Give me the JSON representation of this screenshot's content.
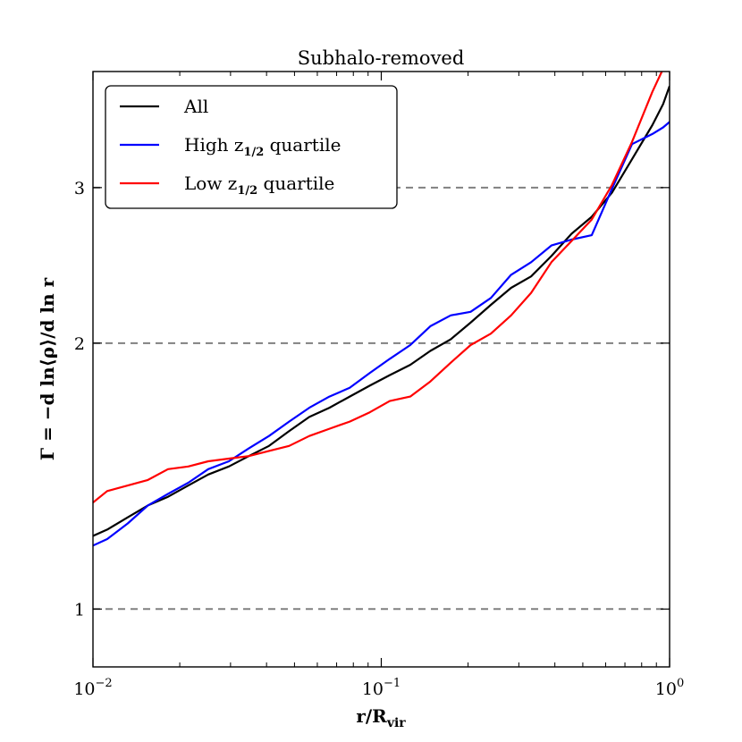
{
  "chart_data": {
    "type": "line",
    "title": "Subhalo-removed",
    "xlabel": {
      "main": "r/R",
      "sub": "vir"
    },
    "ylabel": "Γ = −d ln⟨ρ⟩/d ln r",
    "x_scale": "log",
    "y_scale": "log",
    "xlim": [
      0.01,
      1.0
    ],
    "ylim": [
      0.86,
      4.06
    ],
    "x_ticks": [
      {
        "value": 0.01,
        "base": "10",
        "exp": "−2"
      },
      {
        "value": 0.1,
        "base": "10",
        "exp": "−1"
      },
      {
        "value": 1.0,
        "base": "10",
        "exp": "0"
      }
    ],
    "y_ticks": [
      {
        "value": 1,
        "label": "1"
      },
      {
        "value": 2,
        "label": "2"
      },
      {
        "value": 3,
        "label": "3"
      }
    ],
    "reference_lines": [
      1,
      2,
      3
    ],
    "legend": {
      "position": "top-left",
      "entries": [
        {
          "pre": "All",
          "sub": "",
          "post": "",
          "color": "#000000"
        },
        {
          "pre": "High z",
          "sub": "1/2",
          "post": " quartile",
          "color": "#0000ff"
        },
        {
          "pre": "Low z",
          "sub": "1/2",
          "post": " quartile",
          "color": "#ff0000"
        }
      ]
    },
    "series": [
      {
        "name": "All",
        "color": "#000000",
        "x": [
          0.01,
          0.0112,
          0.0132,
          0.0155,
          0.0182,
          0.0214,
          0.0251,
          0.0296,
          0.0347,
          0.0408,
          0.0479,
          0.0563,
          0.0661,
          0.0777,
          0.0912,
          0.107,
          0.126,
          0.148,
          0.174,
          0.204,
          0.24,
          0.282,
          0.331,
          0.389,
          0.457,
          0.537,
          0.631,
          0.741,
          0.871,
          0.95,
          1.0
        ],
        "values": [
          1.21,
          1.23,
          1.27,
          1.31,
          1.34,
          1.38,
          1.42,
          1.45,
          1.49,
          1.53,
          1.59,
          1.65,
          1.69,
          1.74,
          1.79,
          1.84,
          1.89,
          1.96,
          2.02,
          2.11,
          2.21,
          2.31,
          2.38,
          2.51,
          2.66,
          2.78,
          2.96,
          3.23,
          3.53,
          3.73,
          3.91
        ]
      },
      {
        "name": "High z1/2 quartile",
        "color": "#0000ff",
        "x": [
          0.01,
          0.0112,
          0.0132,
          0.0155,
          0.0182,
          0.0214,
          0.0251,
          0.0296,
          0.0347,
          0.0408,
          0.0479,
          0.0563,
          0.0661,
          0.0777,
          0.0912,
          0.107,
          0.126,
          0.148,
          0.174,
          0.204,
          0.24,
          0.282,
          0.331,
          0.389,
          0.457,
          0.537,
          0.631,
          0.741,
          0.871,
          0.95,
          1.0
        ],
        "values": [
          1.18,
          1.2,
          1.25,
          1.31,
          1.35,
          1.39,
          1.44,
          1.47,
          1.52,
          1.57,
          1.63,
          1.69,
          1.74,
          1.78,
          1.85,
          1.92,
          1.99,
          2.09,
          2.15,
          2.17,
          2.25,
          2.39,
          2.47,
          2.58,
          2.62,
          2.65,
          2.99,
          3.36,
          3.45,
          3.51,
          3.56
        ]
      },
      {
        "name": "Low z1/2 quartile",
        "color": "#ff0000",
        "x": [
          0.01,
          0.0112,
          0.0132,
          0.0155,
          0.0182,
          0.0214,
          0.0251,
          0.0296,
          0.0347,
          0.0408,
          0.0479,
          0.0563,
          0.0661,
          0.0777,
          0.0912,
          0.107,
          0.126,
          0.148,
          0.174,
          0.204,
          0.24,
          0.282,
          0.331,
          0.389,
          0.457,
          0.537,
          0.631,
          0.741,
          0.871,
          0.94
        ],
        "values": [
          1.32,
          1.36,
          1.38,
          1.4,
          1.44,
          1.45,
          1.47,
          1.48,
          1.49,
          1.51,
          1.53,
          1.57,
          1.6,
          1.63,
          1.67,
          1.72,
          1.74,
          1.81,
          1.9,
          1.99,
          2.05,
          2.15,
          2.28,
          2.47,
          2.61,
          2.76,
          3.02,
          3.38,
          3.85,
          4.06
        ]
      }
    ]
  }
}
